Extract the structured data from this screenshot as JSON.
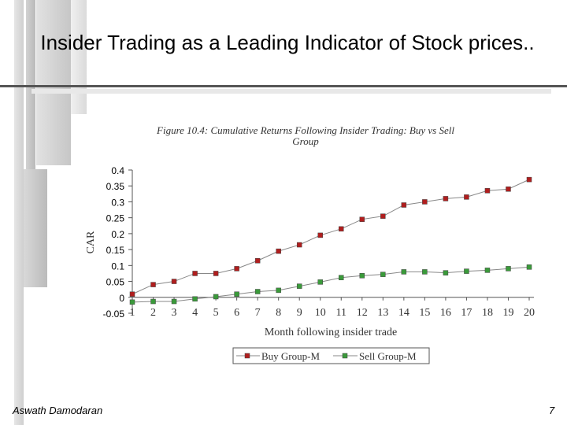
{
  "slide": {
    "title": "Insider Trading as a Leading Indicator of Stock prices..",
    "author": "Aswath Damodaran",
    "page_number": "7"
  },
  "colors": {
    "buy": "#b01e1e",
    "sell": "#3a9a3a",
    "line": "#888888"
  },
  "chart_data": {
    "type": "line",
    "title": "Figure 10.4: Cumulative Returns Following Insider Trading: Buy vs Sell Group",
    "title_lines": [
      "Figure 10.4: Cumulative Returns Following Insider Trading: Buy vs Sell",
      "Group"
    ],
    "xlabel": "Month following insider trade",
    "ylabel": "CAR",
    "ylim": [
      -0.05,
      0.4
    ],
    "ytick_labels": [
      "0.4",
      "0.35",
      "0.3",
      "0.25",
      "0.2",
      "0.15",
      "0.1",
      "0.05",
      "0",
      "-0.05"
    ],
    "yticks": [
      0.4,
      0.35,
      0.3,
      0.25,
      0.2,
      0.15,
      0.1,
      0.05,
      0,
      -0.05
    ],
    "categories": [
      "1",
      "2",
      "3",
      "4",
      "5",
      "6",
      "7",
      "8",
      "9",
      "10",
      "11",
      "12",
      "13",
      "14",
      "15",
      "16",
      "17",
      "18",
      "19",
      "20"
    ],
    "series": [
      {
        "name": "Buy Group-M",
        "values": [
          0.01,
          0.04,
          0.05,
          0.075,
          0.075,
          0.09,
          0.115,
          0.145,
          0.165,
          0.195,
          0.215,
          0.245,
          0.255,
          0.29,
          0.3,
          0.31,
          0.315,
          0.335,
          0.34,
          0.37
        ]
      },
      {
        "name": "Sell Group-M",
        "values": [
          -0.015,
          -0.013,
          -0.013,
          -0.005,
          0.002,
          0.01,
          0.018,
          0.022,
          0.035,
          0.048,
          0.062,
          0.068,
          0.072,
          0.08,
          0.08,
          0.077,
          0.082,
          0.085,
          0.09,
          0.095
        ]
      }
    ],
    "legend": "bottom-center",
    "grid": false
  }
}
